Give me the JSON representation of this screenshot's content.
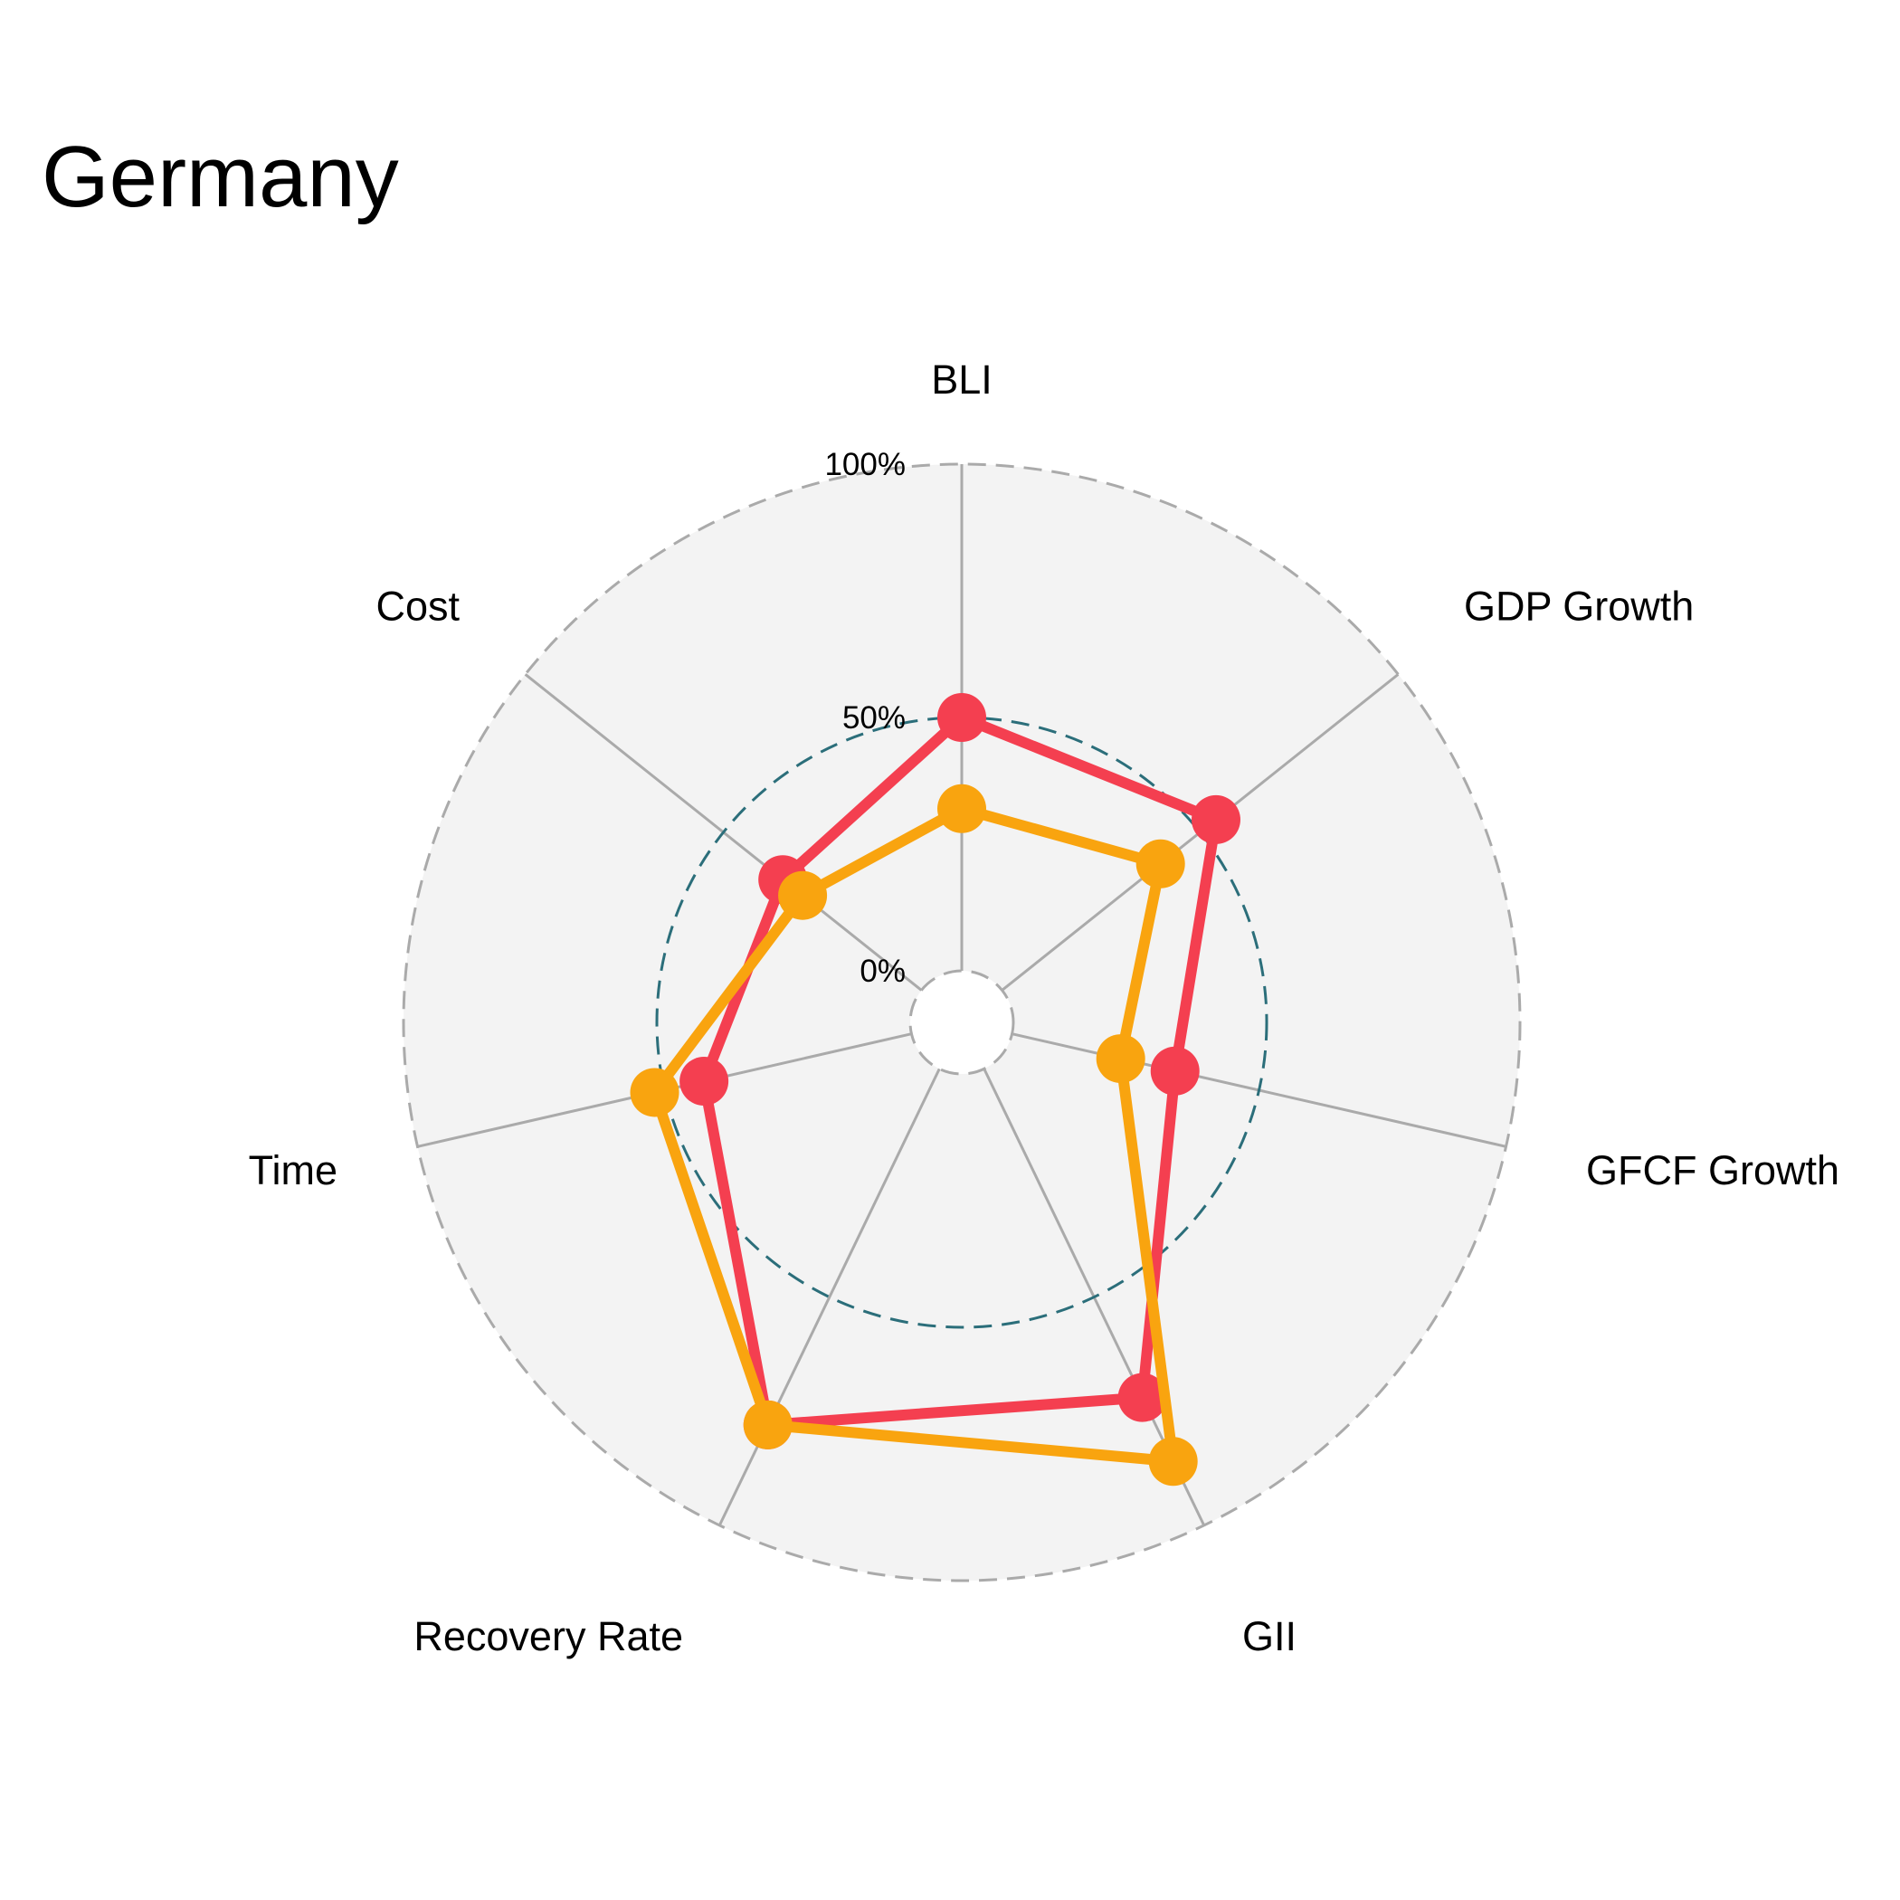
{
  "chart_data": {
    "type": "radar",
    "title": "Germany",
    "axes": [
      "BLI",
      "GDP Growth",
      "GFCF Growth",
      "GII",
      "Recovery Rate",
      "Time",
      "Cost"
    ],
    "radial_ticks": [
      "0%",
      "50%",
      "100%"
    ],
    "range": [
      0,
      100
    ],
    "series": [
      {
        "color": "#f43f50",
        "values": [
          50,
          54,
          33,
          72,
          78,
          42,
          35
        ]
      },
      {
        "color": "#f9a40f",
        "values": [
          32,
          40,
          22,
          86,
          78,
          52,
          30
        ]
      }
    ]
  },
  "colors": {
    "panel_background": "#f3f3f3",
    "grid": "#aaaaaa",
    "mid_circle": "#2b6e7a",
    "series_1": "#f43f50",
    "series_2": "#f9a40f"
  }
}
